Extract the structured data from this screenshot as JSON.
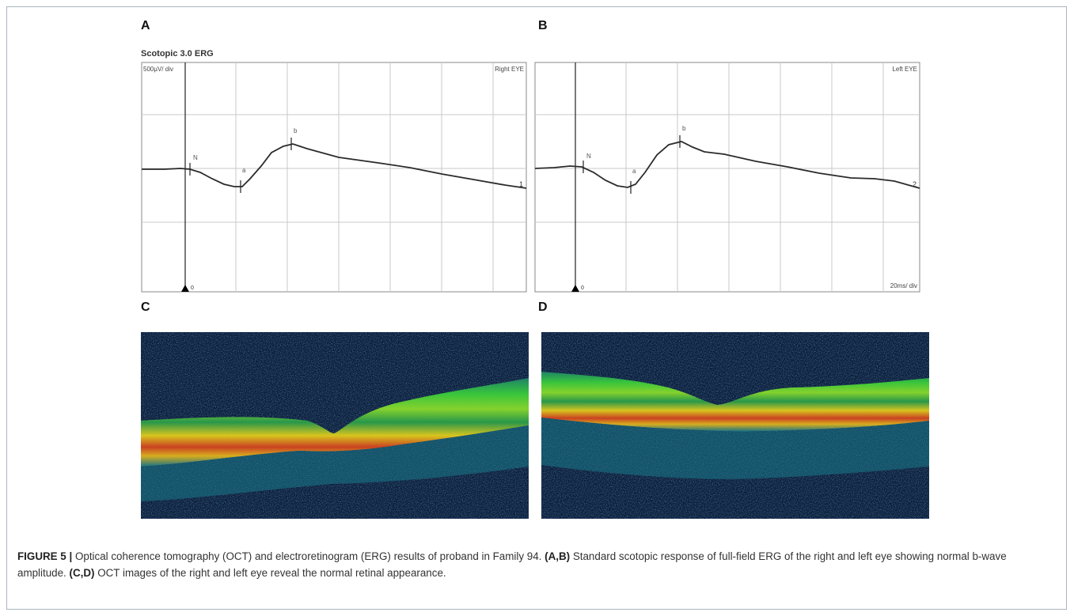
{
  "figure": {
    "panels": {
      "a": "A",
      "b": "B",
      "c": "C",
      "d": "D"
    },
    "erg": {
      "title": "Scotopic 3.0 ERG",
      "right": {
        "scale_label": "500µV/ div",
        "eye_label": "Right EYE",
        "marker_n": "N",
        "marker_a": "a",
        "marker_b": "b",
        "end_label": "1",
        "trigger_label": "0"
      },
      "left": {
        "eye_label": "Left EYE",
        "time_label": "20ms/ div",
        "marker_n": "N",
        "marker_a": "a",
        "marker_b": "b",
        "end_label": "2",
        "trigger_label": "0"
      },
      "colors": {
        "grid": "#c8c8c8",
        "trace": "#2b2b2b"
      }
    },
    "oct": {
      "colors": {
        "background": "#0b1e3a",
        "nerve_fiber": "#3cd23a",
        "rpe": "#e8d21a",
        "hot": "#d9431e",
        "choroid": "#1a7a8a"
      }
    },
    "caption": {
      "label": "FIGURE 5 |",
      "intro": " Optical coherence tomography (OCT) and electroretinogram (ERG) results of proband in Family 94. ",
      "ab_label": "(A,B)",
      "ab_text": " Standard scotopic response of full-field ERG of the right and left eye showing normal b-wave amplitude. ",
      "cd_label": "(C,D)",
      "cd_text": " OCT images of the right and left eye reveal the normal retinal appearance."
    }
  }
}
